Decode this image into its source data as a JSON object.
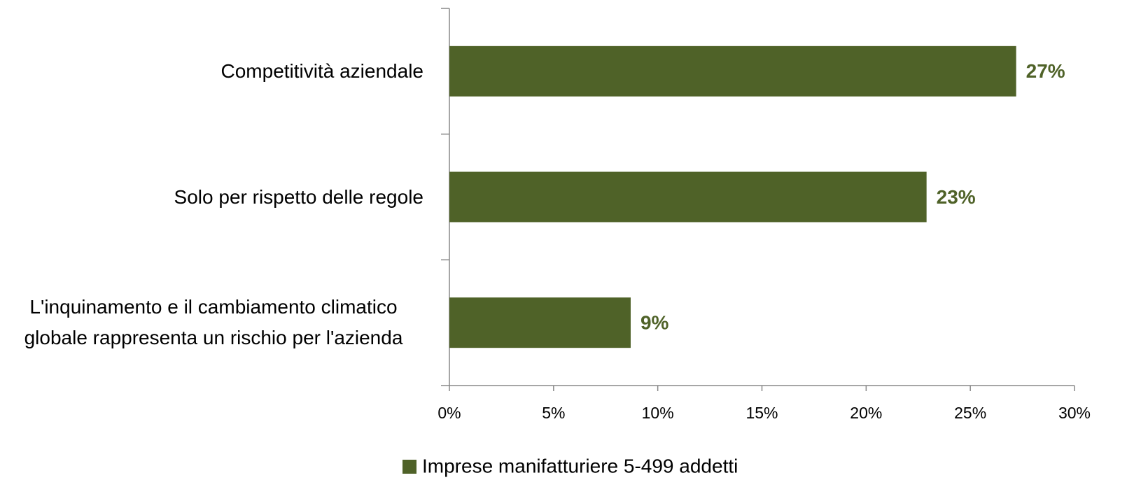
{
  "chart_data": {
    "type": "bar",
    "orientation": "horizontal",
    "categories": [
      "Competitività aziendale",
      "Solo per rispetto delle regole",
      "L'inquinamento e il cambiamento climatico globale rappresenta un rischio per l'azienda"
    ],
    "series": [
      {
        "name": "Imprese manifatturiere 5-499 addetti",
        "color": "#4f6228",
        "values": [
          27.2,
          22.9,
          8.7
        ],
        "value_labels": [
          "27%",
          "23%",
          "9%"
        ]
      }
    ],
    "xlim": [
      0,
      30
    ],
    "xticks": [
      {
        "value": 0,
        "label": "0%"
      },
      {
        "value": 5,
        "label": "5%"
      },
      {
        "value": 10,
        "label": "10%"
      },
      {
        "value": 15,
        "label": "15%"
      },
      {
        "value": 20,
        "label": "20%"
      },
      {
        "value": 25,
        "label": "25%"
      },
      {
        "value": 30,
        "label": "30%"
      }
    ],
    "grid": false,
    "legend": "bottom"
  }
}
